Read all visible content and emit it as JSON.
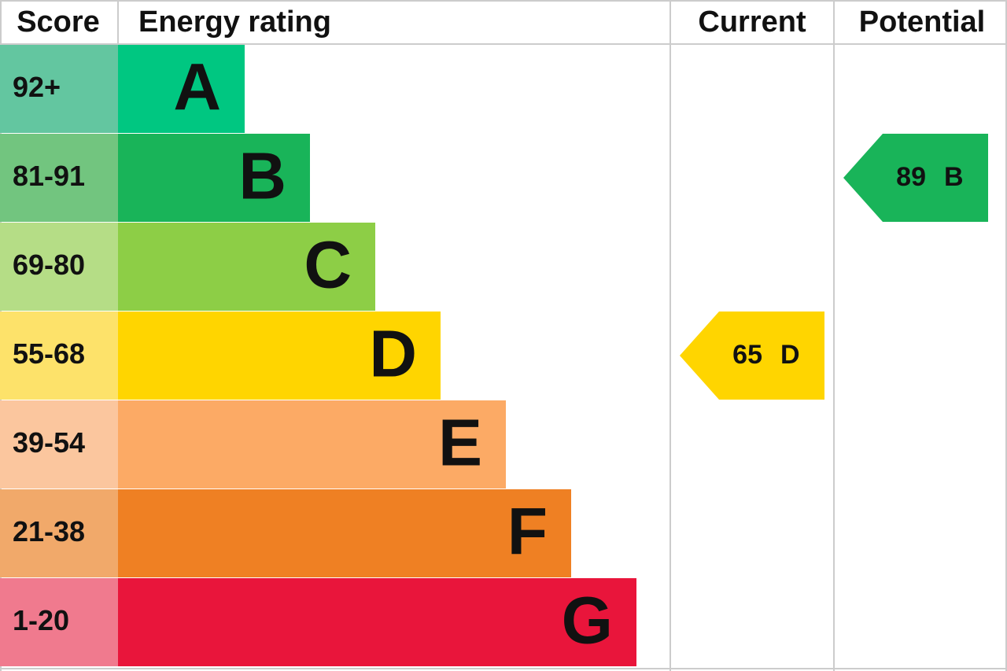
{
  "header": {
    "score": "Score",
    "rating": "Energy rating",
    "current": "Current",
    "potential": "Potential"
  },
  "bands": [
    {
      "range": "92+",
      "letter": "A",
      "color": "#00c781",
      "score_color": "#63c6a0"
    },
    {
      "range": "81-91",
      "letter": "B",
      "color": "#19b459",
      "score_color": "#72c57f"
    },
    {
      "range": "69-80",
      "letter": "C",
      "color": "#8dce46",
      "score_color": "#b5dd86"
    },
    {
      "range": "55-68",
      "letter": "D",
      "color": "#ffd500",
      "score_color": "#fde26a"
    },
    {
      "range": "39-54",
      "letter": "E",
      "color": "#fcaa65",
      "score_color": "#fbc69e"
    },
    {
      "range": "21-38",
      "letter": "F",
      "color": "#ef8023",
      "score_color": "#f1a96a"
    },
    {
      "range": "1-20",
      "letter": "G",
      "color": "#e9153b",
      "score_color": "#f07a8e"
    }
  ],
  "current": {
    "value": 65,
    "letter": "D"
  },
  "potential": {
    "value": 89,
    "letter": "B"
  }
}
